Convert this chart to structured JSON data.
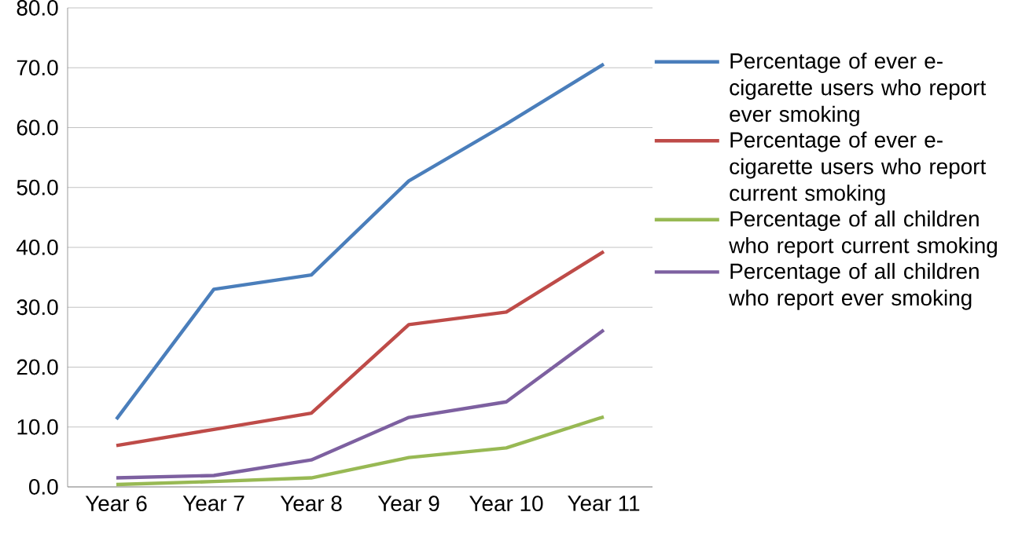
{
  "chart_data": {
    "type": "line",
    "categories": [
      "Year 6",
      "Year 7",
      "Year 8",
      "Year 9",
      "Year 10",
      "Year 11"
    ],
    "series": [
      {
        "name": "Percentage of ever e-cigarette users who report ever smoking",
        "color": "#4a7ebb",
        "values": [
          11.3,
          33.0,
          35.4,
          51.1,
          60.6,
          70.6
        ]
      },
      {
        "name": "Percentage of ever e-cigarette users who report current smoking",
        "color": "#be4b48",
        "values": [
          6.9,
          9.6,
          12.3,
          27.1,
          29.2,
          39.3
        ]
      },
      {
        "name": "Percentage of all children who report current smoking",
        "color": "#98b954",
        "values": [
          0.4,
          0.9,
          1.5,
          4.9,
          6.5,
          11.7
        ]
      },
      {
        "name": "Percentage of all children who report ever smoking",
        "color": "#7d60a0",
        "values": [
          1.5,
          1.9,
          4.5,
          11.6,
          14.2,
          26.2
        ]
      }
    ],
    "ylim": [
      0,
      80
    ],
    "yticks": [
      {
        "value": 0,
        "label": "0.0"
      },
      {
        "value": 10,
        "label": "10.0"
      },
      {
        "value": 20,
        "label": "20.0"
      },
      {
        "value": 30,
        "label": "30.0"
      },
      {
        "value": 40,
        "label": "40.0"
      },
      {
        "value": 50,
        "label": "50.0"
      },
      {
        "value": 60,
        "label": "60.0"
      },
      {
        "value": 70,
        "label": "70.0"
      },
      {
        "value": 80,
        "label": "80.0"
      }
    ],
    "grid": "y",
    "legend": "right",
    "marker": "none",
    "line_style": "solid"
  }
}
